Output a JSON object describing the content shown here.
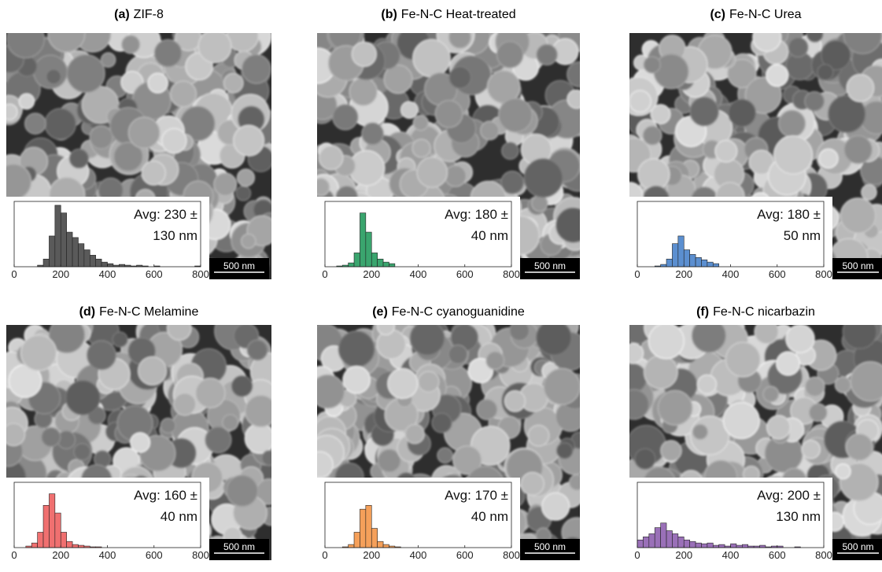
{
  "chart_data": [
    {
      "type": "histogram",
      "panel_label": "(a)",
      "title": "ZIF-8",
      "color": "#5a5a5a",
      "bins": [
        100,
        125,
        150,
        175,
        200,
        225,
        250,
        275,
        300,
        325,
        350,
        375,
        400,
        425,
        450,
        475,
        500,
        525,
        550,
        575,
        600,
        625,
        650,
        675,
        700,
        725,
        750,
        775,
        800
      ],
      "values": [
        2,
        10,
        40,
        80,
        70,
        45,
        38,
        30,
        22,
        15,
        10,
        6,
        4,
        2,
        3,
        2,
        1,
        2,
        1,
        0,
        1,
        0,
        0,
        0,
        0,
        0,
        0,
        1
      ],
      "xlim": [
        0,
        800
      ],
      "xticks": [
        0,
        200,
        400,
        600,
        800
      ],
      "ylim": [
        0,
        85
      ],
      "annotation_lines": [
        "Avg: 230 ±",
        "130 nm"
      ],
      "scale_bar": "500 nm"
    },
    {
      "type": "histogram",
      "panel_label": "(b)",
      "title": "Fe-N-C Heat-treated",
      "color": "#3aa56e",
      "bins": [
        50,
        75,
        100,
        125,
        150,
        175,
        200,
        225,
        250,
        275,
        300
      ],
      "values": [
        1,
        2,
        5,
        18,
        70,
        45,
        18,
        10,
        6,
        4
      ],
      "xlim": [
        0,
        800
      ],
      "xticks": [
        0,
        200,
        400,
        600,
        800
      ],
      "ylim": [
        0,
        85
      ],
      "annotation_lines": [
        "Avg: 180 ±",
        "40 nm"
      ],
      "scale_bar": "500 nm"
    },
    {
      "type": "histogram",
      "panel_label": "(c)",
      "title": "Fe-N-C Urea",
      "color": "#5b8fd0",
      "bins": [
        75,
        100,
        125,
        150,
        175,
        200,
        225,
        250,
        275,
        300,
        325,
        350
      ],
      "values": [
        1,
        3,
        10,
        30,
        40,
        22,
        16,
        12,
        9,
        6,
        4
      ],
      "xlim": [
        0,
        800
      ],
      "xticks": [
        0,
        200,
        400,
        600,
        800
      ],
      "ylim": [
        0,
        85
      ],
      "annotation_lines": [
        "Avg: 180 ±",
        "50 nm"
      ],
      "scale_bar": "500 nm"
    },
    {
      "type": "histogram",
      "panel_label": "(d)",
      "title": "Fe-N-C Melamine",
      "color": "#f07070",
      "bins": [
        50,
        75,
        100,
        125,
        150,
        175,
        200,
        225,
        250,
        275,
        300,
        325,
        350,
        375
      ],
      "values": [
        2,
        6,
        20,
        55,
        70,
        45,
        20,
        8,
        4,
        3,
        2,
        1,
        1
      ],
      "xlim": [
        0,
        800
      ],
      "xticks": [
        0,
        200,
        400,
        600,
        800
      ],
      "ylim": [
        0,
        85
      ],
      "annotation_lines": [
        "Avg: 160 ±",
        "40 nm"
      ],
      "scale_bar": "500 nm"
    },
    {
      "type": "histogram",
      "panel_label": "(e)",
      "title": "Fe-N-C cyanoguanidine",
      "color": "#f5a05a",
      "bins": [
        75,
        100,
        125,
        150,
        175,
        200,
        225,
        250,
        275,
        300,
        325
      ],
      "values": [
        1,
        4,
        20,
        50,
        55,
        25,
        8,
        4,
        2,
        1
      ],
      "xlim": [
        0,
        800
      ],
      "xticks": [
        0,
        200,
        400,
        600,
        800
      ],
      "ylim": [
        0,
        85
      ],
      "annotation_lines": [
        "Avg: 170 ±",
        "40 nm"
      ],
      "scale_bar": "500 nm"
    },
    {
      "type": "histogram",
      "panel_label": "(f)",
      "title": "Fe-N-C nicarbazin",
      "color": "#9a70b8",
      "bins": [
        0,
        25,
        50,
        75,
        100,
        125,
        150,
        175,
        200,
        225,
        250,
        275,
        300,
        325,
        350,
        375,
        400,
        425,
        450,
        475,
        500,
        525,
        550,
        575,
        600,
        625,
        650,
        675,
        700
      ],
      "values": [
        10,
        14,
        18,
        26,
        32,
        22,
        18,
        14,
        10,
        8,
        6,
        5,
        6,
        3,
        4,
        2,
        5,
        3,
        4,
        2,
        2,
        3,
        1,
        2,
        2,
        0,
        0,
        1
      ],
      "xlim": [
        0,
        800
      ],
      "xticks": [
        0,
        200,
        400,
        600,
        800
      ],
      "ylim": [
        0,
        85
      ],
      "annotation_lines": [
        "Avg: 200 ±",
        "130 nm"
      ],
      "scale_bar": "500 nm"
    }
  ]
}
